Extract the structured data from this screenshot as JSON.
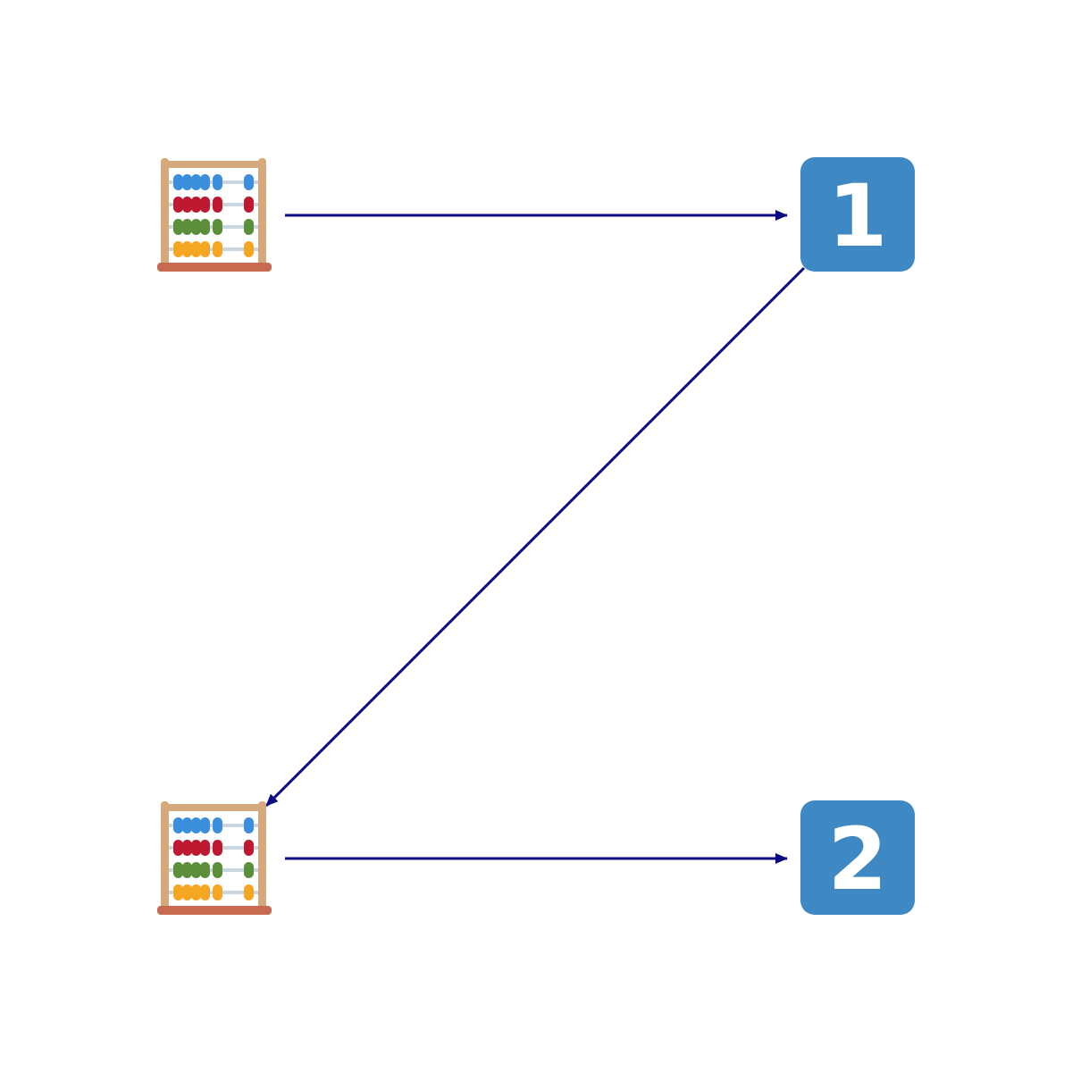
{
  "diagram": {
    "colors": {
      "edge": "#0b0b84",
      "keycap_bg": "#3e88c4",
      "keycap_text": "#ffffff",
      "abacus_frame": "#d6a97c",
      "abacus_base": "#c76a50",
      "abacus_rod": "#c9d6df",
      "bead_blue": "#3b8fdc",
      "bead_red": "#be1931",
      "bead_green": "#5c8f3a",
      "bead_orange": "#f5a623"
    },
    "nodes": [
      {
        "id": "abacus-top",
        "icon": "abacus-icon"
      },
      {
        "id": "keycap-1",
        "icon": "keycap-number-icon",
        "label": "1"
      },
      {
        "id": "abacus-bottom",
        "icon": "abacus-icon"
      },
      {
        "id": "keycap-2",
        "icon": "keycap-number-icon",
        "label": "2"
      }
    ],
    "edges": [
      {
        "from": "abacus-top",
        "to": "keycap-1"
      },
      {
        "from": "keycap-1",
        "to": "abacus-bottom"
      },
      {
        "from": "abacus-bottom",
        "to": "keycap-2"
      }
    ]
  }
}
